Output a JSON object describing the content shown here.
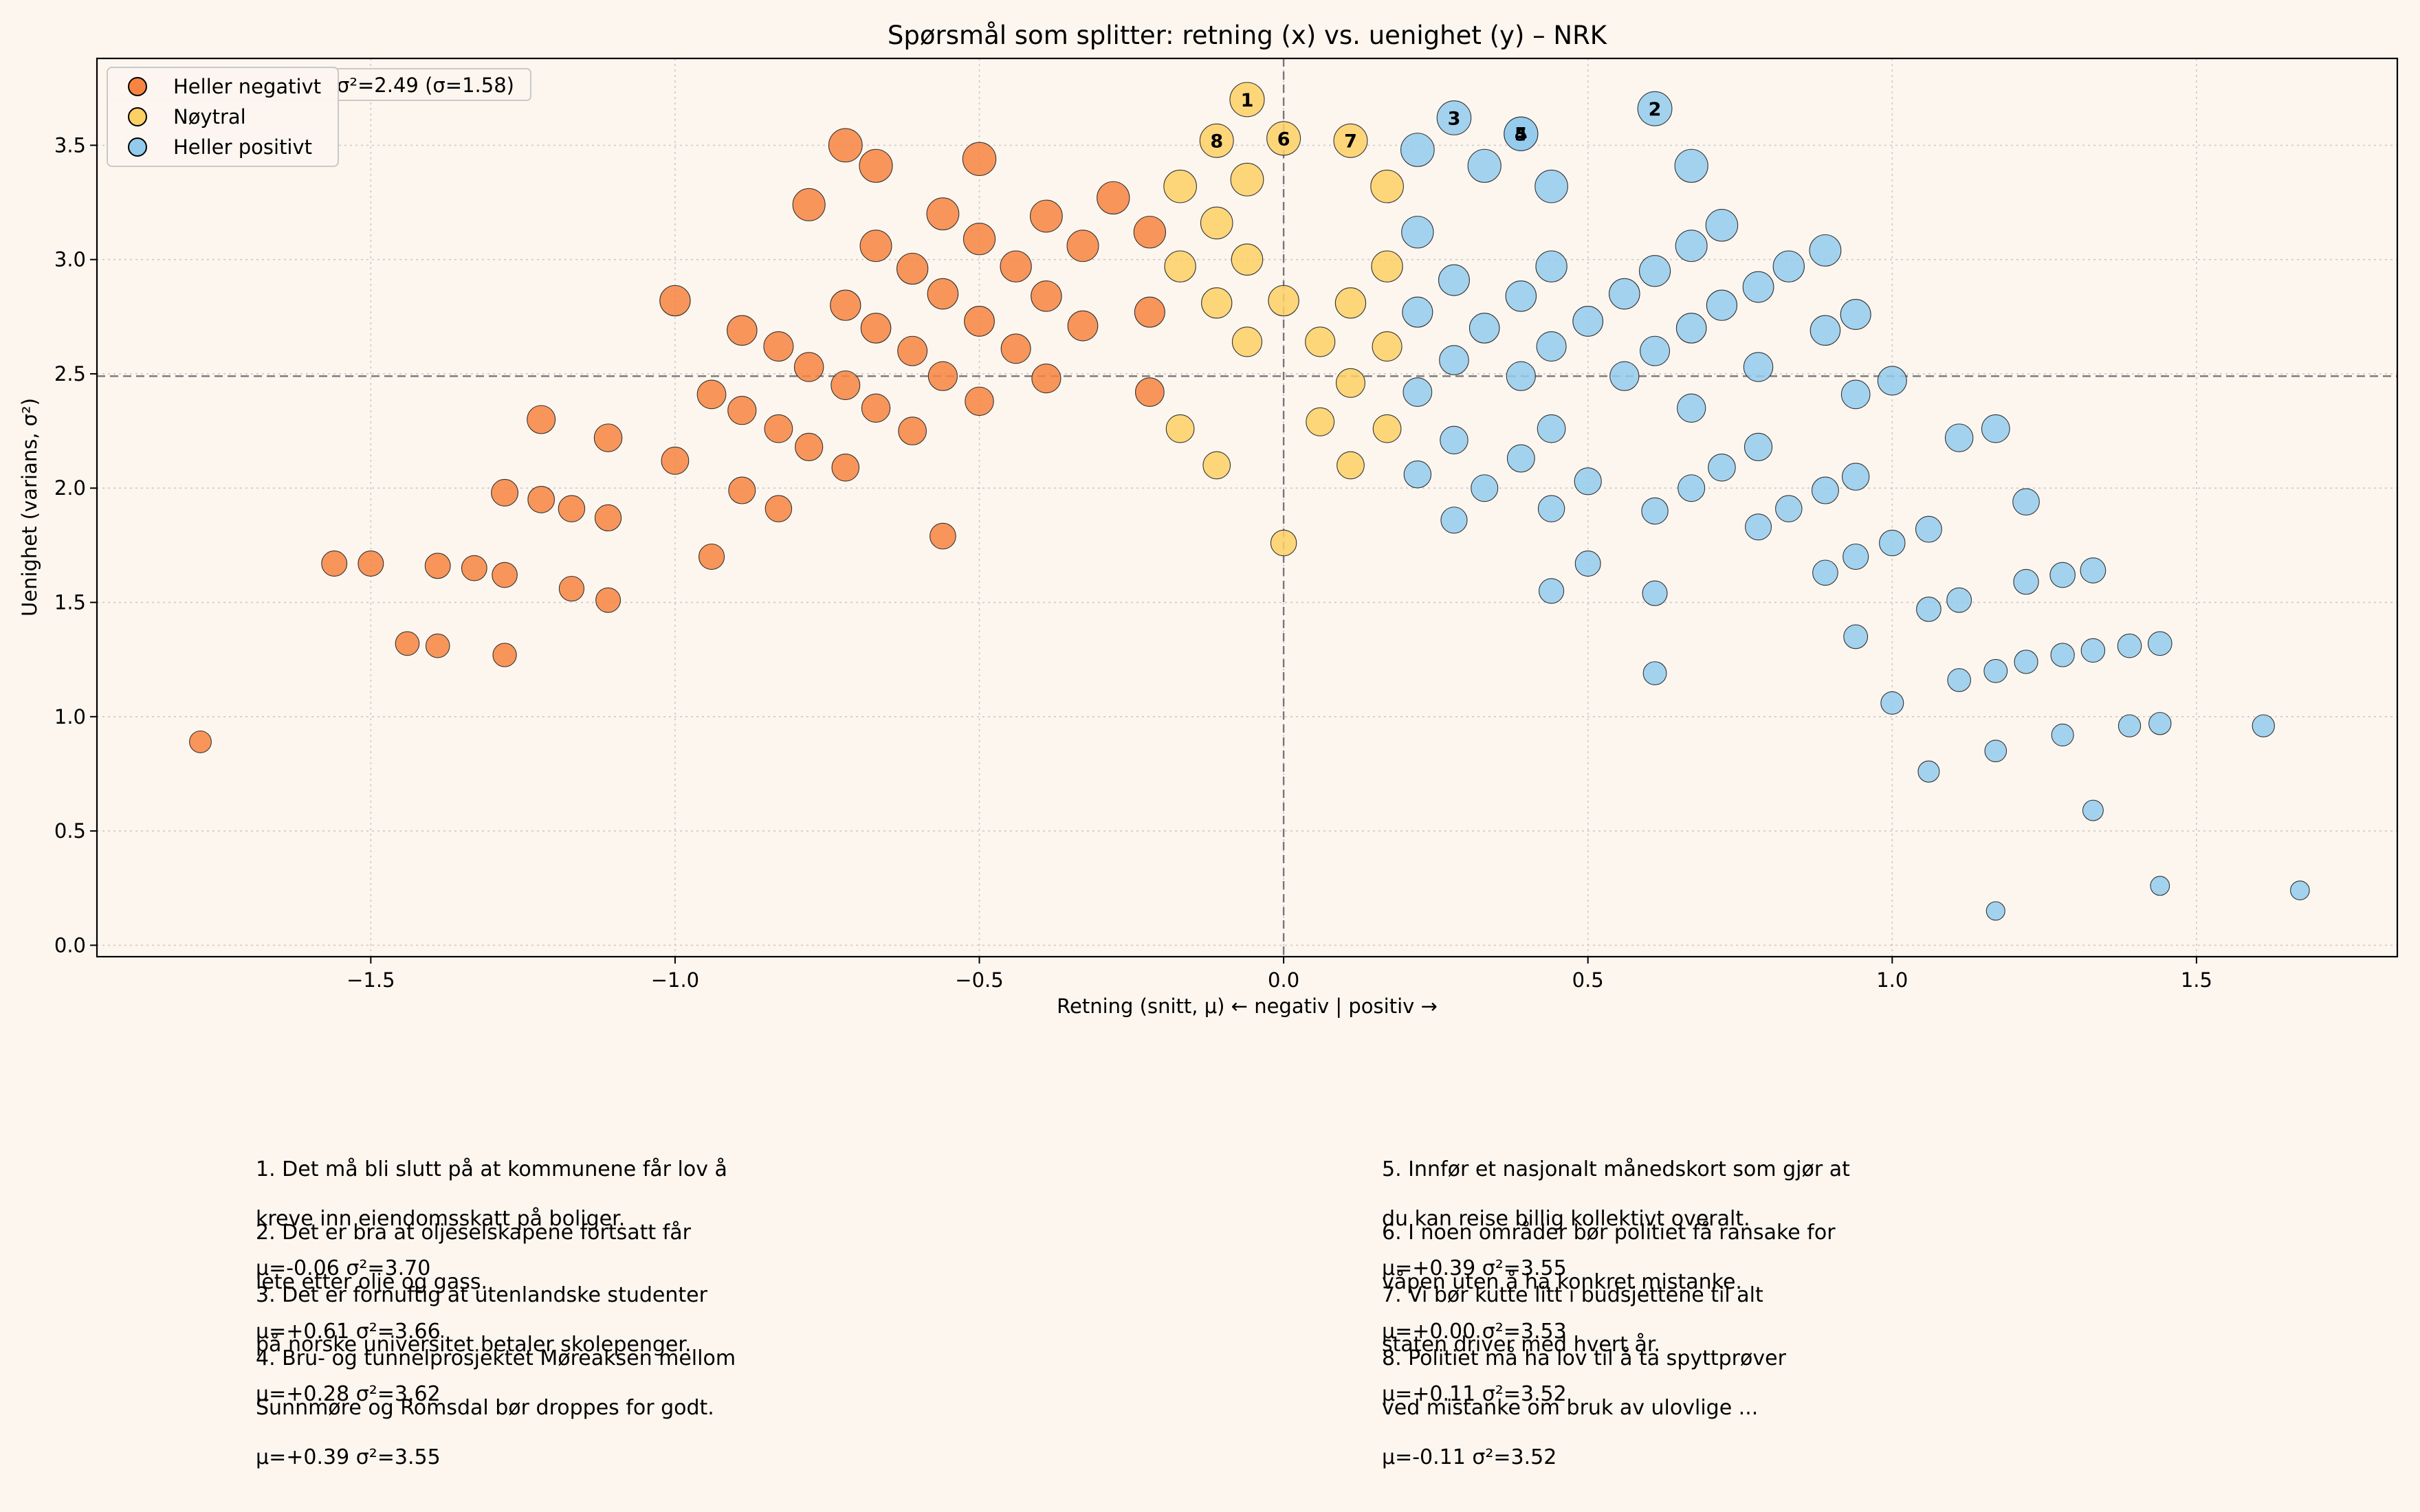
{
  "chart_data": {
    "type": "scatter",
    "title": "Spørsmål som splitter: retning (x) vs. uenighet (y) – NRK",
    "xlabel": "Retning (snitt, μ)  ← negativ | positiv →",
    "ylabel": "Uenighet (varians, σ²)",
    "xlim": [
      -1.95,
      1.83
    ],
    "ylim": [
      -0.05,
      3.88
    ],
    "xticks": [
      -1.5,
      -1.0,
      -0.5,
      0.0,
      0.5,
      1.0,
      1.5
    ],
    "xtick_labels": [
      "−1.5",
      "−1.0",
      "−0.5",
      "0.0",
      "0.5",
      "1.0",
      "1.5"
    ],
    "yticks": [
      0.0,
      0.5,
      1.0,
      1.5,
      2.0,
      2.5,
      3.0,
      3.5
    ],
    "ytick_labels": [
      "0.0",
      "0.5",
      "1.0",
      "1.5",
      "2.0",
      "2.5",
      "3.0",
      "3.5"
    ],
    "grid": true,
    "legend_placement": "upper-left",
    "mean_line": {
      "y": 2.49,
      "label": "Mean σ²=2.49  (σ=1.58)",
      "label_visible": "σ²=2.49  (σ=1.58)"
    },
    "zero_line_x": 0.0,
    "series": [
      {
        "name": "Heller negativt",
        "color": "#f7843f",
        "points": [
          [
            -1.78,
            0.89
          ],
          [
            -1.56,
            1.67
          ],
          [
            -1.5,
            1.67
          ],
          [
            -1.44,
            1.32
          ],
          [
            -1.39,
            1.31
          ],
          [
            -1.39,
            1.66
          ],
          [
            -1.33,
            1.65
          ],
          [
            -1.28,
            1.62
          ],
          [
            -1.28,
            1.27
          ],
          [
            -1.28,
            1.98
          ],
          [
            -1.22,
            2.3
          ],
          [
            -1.22,
            1.95
          ],
          [
            -1.17,
            1.91
          ],
          [
            -1.17,
            1.56
          ],
          [
            -1.11,
            1.87
          ],
          [
            -1.11,
            1.51
          ],
          [
            -1.11,
            2.22
          ],
          [
            -1.0,
            2.82
          ],
          [
            -1.0,
            2.12
          ],
          [
            -0.94,
            2.41
          ],
          [
            -0.94,
            1.7
          ],
          [
            -0.89,
            2.34
          ],
          [
            -0.89,
            2.69
          ],
          [
            -0.89,
            1.99
          ],
          [
            -0.83,
            2.62
          ],
          [
            -0.83,
            2.26
          ],
          [
            -0.83,
            1.91
          ],
          [
            -0.78,
            3.24
          ],
          [
            -0.78,
            2.53
          ],
          [
            -0.78,
            2.18
          ],
          [
            -0.72,
            3.5
          ],
          [
            -0.72,
            2.8
          ],
          [
            -0.72,
            2.45
          ],
          [
            -0.72,
            2.09
          ],
          [
            -0.67,
            3.41
          ],
          [
            -0.67,
            3.06
          ],
          [
            -0.67,
            2.7
          ],
          [
            -0.67,
            2.35
          ],
          [
            -0.61,
            2.96
          ],
          [
            -0.61,
            2.6
          ],
          [
            -0.61,
            2.25
          ],
          [
            -0.56,
            3.2
          ],
          [
            -0.56,
            2.85
          ],
          [
            -0.56,
            2.49
          ],
          [
            -0.56,
            1.79
          ],
          [
            -0.5,
            3.44
          ],
          [
            -0.5,
            3.09
          ],
          [
            -0.5,
            2.73
          ],
          [
            -0.5,
            2.38
          ],
          [
            -0.44,
            2.97
          ],
          [
            -0.44,
            2.61
          ],
          [
            -0.39,
            3.19
          ],
          [
            -0.39,
            2.84
          ],
          [
            -0.39,
            2.48
          ],
          [
            -0.33,
            3.06
          ],
          [
            -0.33,
            2.71
          ],
          [
            -0.28,
            3.27
          ],
          [
            -0.22,
            3.12
          ],
          [
            -0.22,
            2.77
          ],
          [
            -0.22,
            2.42
          ]
        ]
      },
      {
        "name": "Nøytral",
        "color": "#fdd065",
        "points": [
          [
            -0.17,
            3.32
          ],
          [
            -0.17,
            2.97
          ],
          [
            -0.17,
            2.26
          ],
          [
            -0.11,
            3.52
          ],
          [
            -0.11,
            3.16
          ],
          [
            -0.11,
            2.81
          ],
          [
            -0.11,
            2.1
          ],
          [
            -0.06,
            3.7
          ],
          [
            -0.06,
            3.35
          ],
          [
            -0.06,
            3.0
          ],
          [
            -0.06,
            2.64
          ],
          [
            0.0,
            3.53
          ],
          [
            0.0,
            2.82
          ],
          [
            0.0,
            1.76
          ],
          [
            0.06,
            2.64
          ],
          [
            0.06,
            2.29
          ],
          [
            0.11,
            3.52
          ],
          [
            0.11,
            2.81
          ],
          [
            0.11,
            2.46
          ],
          [
            0.11,
            2.1
          ],
          [
            0.17,
            3.32
          ],
          [
            0.17,
            2.97
          ],
          [
            0.17,
            2.62
          ],
          [
            0.17,
            2.26
          ]
        ]
      },
      {
        "name": "Heller positivt",
        "color": "#93cbed",
        "points": [
          [
            0.22,
            3.48
          ],
          [
            0.22,
            3.12
          ],
          [
            0.22,
            2.77
          ],
          [
            0.22,
            2.42
          ],
          [
            0.22,
            2.06
          ],
          [
            0.28,
            3.62
          ],
          [
            0.28,
            2.91
          ],
          [
            0.28,
            2.56
          ],
          [
            0.28,
            2.21
          ],
          [
            0.28,
            1.86
          ],
          [
            0.33,
            3.41
          ],
          [
            0.33,
            2.7
          ],
          [
            0.33,
            2.0
          ],
          [
            0.39,
            3.55
          ],
          [
            0.39,
            3.55
          ],
          [
            0.39,
            2.84
          ],
          [
            0.39,
            2.49
          ],
          [
            0.39,
            2.13
          ],
          [
            0.44,
            3.32
          ],
          [
            0.44,
            2.97
          ],
          [
            0.44,
            2.62
          ],
          [
            0.44,
            2.26
          ],
          [
            0.44,
            1.91
          ],
          [
            0.44,
            1.55
          ],
          [
            0.5,
            2.73
          ],
          [
            0.5,
            2.03
          ],
          [
            0.5,
            1.67
          ],
          [
            0.56,
            2.85
          ],
          [
            0.56,
            2.49
          ],
          [
            0.61,
            3.66
          ],
          [
            0.61,
            2.95
          ],
          [
            0.61,
            2.6
          ],
          [
            0.61,
            1.9
          ],
          [
            0.61,
            1.54
          ],
          [
            0.61,
            1.19
          ],
          [
            0.67,
            3.41
          ],
          [
            0.67,
            3.06
          ],
          [
            0.67,
            2.7
          ],
          [
            0.67,
            2.35
          ],
          [
            0.67,
            2.0
          ],
          [
            0.72,
            3.15
          ],
          [
            0.72,
            2.8
          ],
          [
            0.72,
            2.09
          ],
          [
            0.78,
            2.88
          ],
          [
            0.78,
            2.53
          ],
          [
            0.78,
            2.18
          ],
          [
            0.78,
            1.83
          ],
          [
            0.83,
            2.97
          ],
          [
            0.83,
            1.91
          ],
          [
            0.89,
            3.04
          ],
          [
            0.89,
            2.69
          ],
          [
            0.89,
            1.99
          ],
          [
            0.89,
            1.63
          ],
          [
            0.94,
            2.76
          ],
          [
            0.94,
            2.41
          ],
          [
            0.94,
            2.05
          ],
          [
            0.94,
            1.7
          ],
          [
            0.94,
            1.35
          ],
          [
            1.0,
            2.47
          ],
          [
            1.0,
            1.76
          ],
          [
            1.0,
            1.06
          ],
          [
            1.06,
            1.82
          ],
          [
            1.06,
            1.47
          ],
          [
            1.06,
            0.76
          ],
          [
            1.11,
            2.22
          ],
          [
            1.11,
            1.51
          ],
          [
            1.11,
            1.16
          ],
          [
            1.17,
            2.26
          ],
          [
            1.17,
            1.2
          ],
          [
            1.17,
            0.85
          ],
          [
            1.17,
            0.15
          ],
          [
            1.22,
            1.94
          ],
          [
            1.22,
            1.59
          ],
          [
            1.22,
            1.24
          ],
          [
            1.28,
            1.62
          ],
          [
            1.28,
            1.27
          ],
          [
            1.28,
            0.92
          ],
          [
            1.33,
            1.64
          ],
          [
            1.33,
            1.29
          ],
          [
            1.33,
            0.59
          ],
          [
            1.39,
            1.31
          ],
          [
            1.39,
            0.96
          ],
          [
            1.44,
            1.32
          ],
          [
            1.44,
            0.97
          ],
          [
            1.44,
            0.26
          ],
          [
            1.61,
            0.96
          ],
          [
            1.67,
            0.24
          ]
        ]
      }
    ],
    "labeled_points": [
      {
        "label": "1",
        "x": -0.06,
        "y": 3.7,
        "group": "Nøytral"
      },
      {
        "label": "2",
        "x": 0.61,
        "y": 3.66,
        "group": "Heller positivt"
      },
      {
        "label": "3",
        "x": 0.28,
        "y": 3.62,
        "group": "Heller positivt"
      },
      {
        "label": "4",
        "x": 0.39,
        "y": 3.55,
        "group": "Heller positivt"
      },
      {
        "label": "5",
        "x": 0.39,
        "y": 3.55,
        "group": "Heller positivt"
      },
      {
        "label": "6",
        "x": 0.0,
        "y": 3.53,
        "group": "Nøytral"
      },
      {
        "label": "7",
        "x": 0.11,
        "y": 3.52,
        "group": "Nøytral"
      },
      {
        "label": "8",
        "x": -0.11,
        "y": 3.52,
        "group": "Nøytral"
      }
    ]
  },
  "notes_left": [
    {
      "line1": "1. Det må bli slutt på at kommunene får lov å",
      "line2": "kreve inn eiendomsskatt på boliger.",
      "stats": "μ=-0.06   σ²=3.70"
    },
    {
      "line1": "2. Det er bra at oljeselskapene fortsatt får",
      "line2": "lete etter olje og gass.",
      "stats": "μ=+0.61   σ²=3.66"
    },
    {
      "line1": "3. Det er fornuftig at utenlandske studenter",
      "line2": "på norske universitet betaler skolepenger.",
      "stats": "μ=+0.28   σ²=3.62"
    },
    {
      "line1": "4. Bru- og tunnelprosjektet Møreaksen mellom",
      "line2": "Sunnmøre og Romsdal bør droppes for godt.",
      "stats": "μ=+0.39   σ²=3.55"
    }
  ],
  "notes_right": [
    {
      "line1": "5. Innfør et nasjonalt månedskort som gjør at",
      "line2": "du kan reise billig kollektivt overalt.",
      "stats": "μ=+0.39   σ²=3.55"
    },
    {
      "line1": "6. I noen områder bør politiet få ransake for",
      "line2": "våpen uten å ha konkret mistanke.",
      "stats": "μ=+0.00   σ²=3.53"
    },
    {
      "line1": "7. Vi bør kutte litt i budsjettene til alt",
      "line2": "staten driver med hvert år.",
      "stats": "μ=+0.11   σ²=3.52"
    },
    {
      "line1": "8. Politiet må ha lov til å ta spyttprøver",
      "line2": "ved mistanke om bruk av ulovlige ...",
      "stats": "μ=-0.11   σ²=3.52"
    }
  ]
}
